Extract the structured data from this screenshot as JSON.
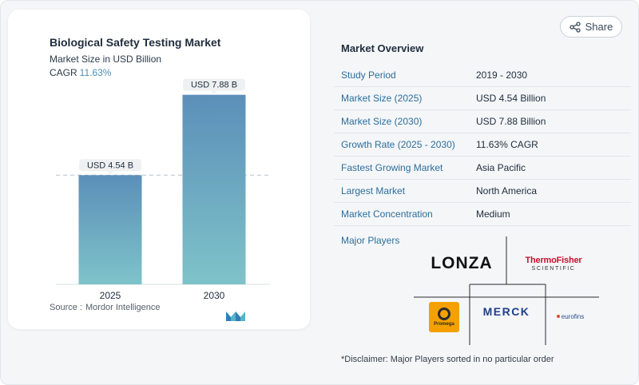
{
  "header": {
    "share_label": "Share",
    "share_icon": "share-icon"
  },
  "chart_card": {
    "title": "Biological Safety Testing Market",
    "subtitle": "Market Size in USD Billion",
    "cagr_label": "CAGR",
    "cagr_value": "11.63%",
    "source_label": "Source :",
    "source_name": "Mordor Intelligence",
    "logo_icon": "mordor-intelligence-logo"
  },
  "chart_data": {
    "type": "bar",
    "title": "Biological Safety Testing Market",
    "subtitle": "Market Size in USD Billion",
    "categories": [
      "2025",
      "2030"
    ],
    "values": [
      4.54,
      7.88
    ],
    "data_labels": [
      "USD 4.54 B",
      "USD 7.88 B"
    ],
    "xlabel": "",
    "ylabel": "",
    "ylim": [
      0,
      8.5
    ],
    "grid": false,
    "reference_line_value": 4.54,
    "colors": {
      "bar_top": "#5b8fb9",
      "bar_bottom": "#7fc3c9",
      "label_bg": "#eef0f2",
      "reference_line": "#b8c2cc"
    }
  },
  "overview": {
    "title": "Market Overview",
    "rows": [
      {
        "label": "Study Period",
        "value": "2019 - 2030"
      },
      {
        "label": "Market Size (2025)",
        "value": "USD 4.54 Billion"
      },
      {
        "label": "Market Size (2030)",
        "value": "USD 7.88 Billion"
      },
      {
        "label": "Growth Rate (2025 - 2030)",
        "value": "11.63% CAGR"
      },
      {
        "label": "Fastest Growing Market",
        "value": "Asia Pacific"
      },
      {
        "label": "Largest Market",
        "value": "North America"
      },
      {
        "label": "Market Concentration",
        "value": "Medium"
      }
    ],
    "players_title": "Major Players",
    "players": {
      "lonza": "LONZA",
      "thermo_line1": "ThermoFisher",
      "thermo_line2": "SCIENTIFIC",
      "promega": "Promega",
      "merck": "MERCK",
      "eurofins": "eurofins"
    },
    "disclaimer": "*Disclaimer: Major Players sorted in no particular order"
  },
  "colors": {
    "accent_label": "#2c6e9c",
    "cagr": "#4a90b8"
  }
}
